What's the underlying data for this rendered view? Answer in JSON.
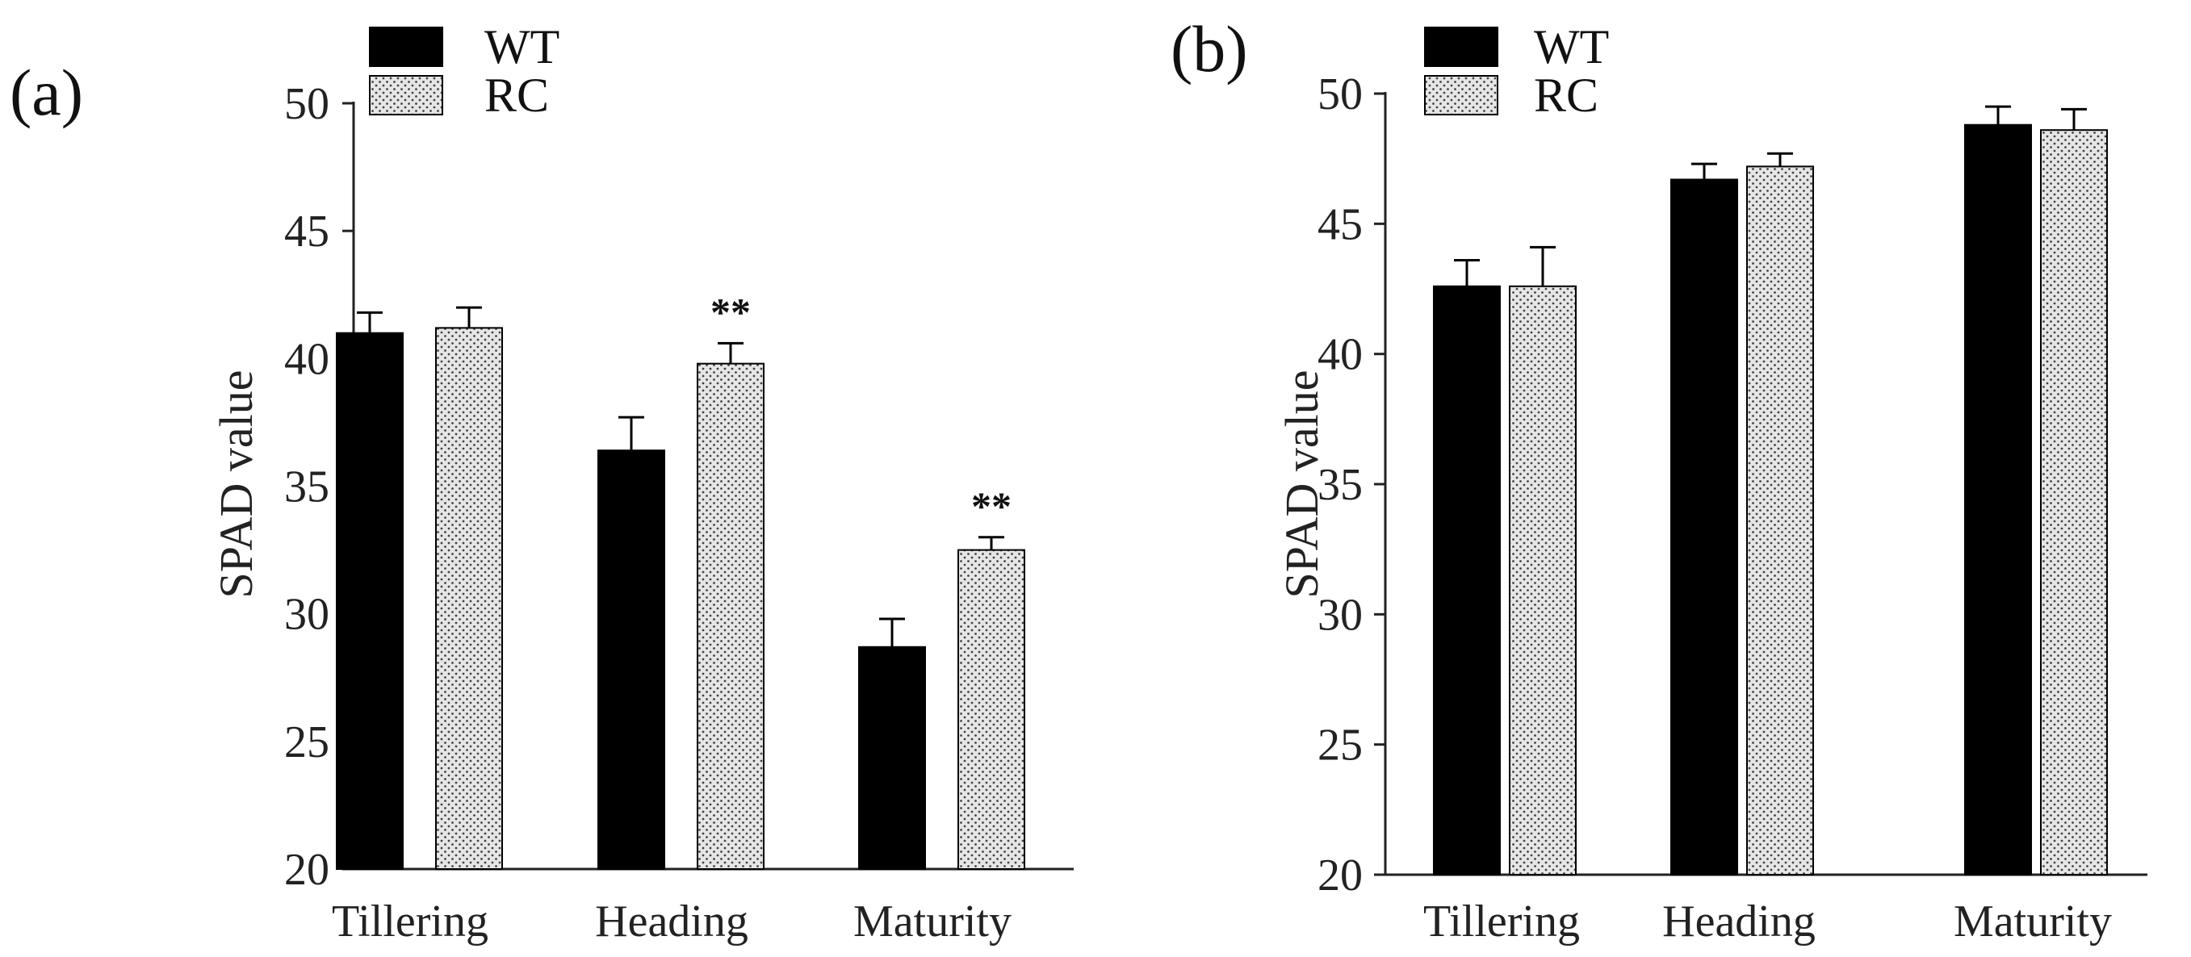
{
  "chart_data": [
    {
      "type": "bar",
      "panel": "(a)",
      "ylabel": "SPAD value",
      "xlabel": "",
      "ylim": [
        20,
        50
      ],
      "yticks": [
        20,
        25,
        30,
        35,
        40,
        45,
        50
      ],
      "ytick_labels": [
        "20",
        "25",
        "30",
        "35",
        "40",
        "45",
        "50"
      ],
      "categories": [
        "Tillering",
        "Heading",
        "Maturity"
      ],
      "legend": "top-left",
      "grid": false,
      "series": [
        {
          "name": "WT",
          "pattern": "solid",
          "values": [
            41.0,
            36.4,
            28.7
          ],
          "errors": [
            0.8,
            1.3,
            1.1
          ]
        },
        {
          "name": "RC",
          "pattern": "dotted",
          "values": [
            41.2,
            39.8,
            32.5
          ],
          "errors": [
            0.8,
            0.8,
            0.5
          ]
        }
      ],
      "annotations": [
        {
          "text": "**",
          "category": "Heading",
          "series": "RC"
        },
        {
          "text": "**",
          "category": "Maturity",
          "series": "RC"
        }
      ]
    },
    {
      "type": "bar",
      "panel": "(b)",
      "ylabel": "SPAD value",
      "xlabel": "",
      "ylim": [
        20,
        50
      ],
      "yticks": [
        20,
        25,
        30,
        35,
        40,
        45,
        50
      ],
      "ytick_labels": [
        "20",
        "25",
        "30",
        "35",
        "40",
        "45",
        "50"
      ],
      "categories": [
        "Tillering",
        "Heading",
        "Maturity"
      ],
      "legend": "top-left",
      "grid": false,
      "series": [
        {
          "name": "WT",
          "pattern": "solid",
          "values": [
            42.6,
            46.7,
            48.8
          ],
          "errors": [
            1.0,
            0.6,
            0.7
          ]
        },
        {
          "name": "RC",
          "pattern": "dotted",
          "values": [
            42.6,
            47.2,
            48.6
          ],
          "errors": [
            1.5,
            0.5,
            0.8
          ]
        }
      ],
      "annotations": []
    }
  ],
  "colors": {
    "wt": "#000000",
    "rc_fill": "#e6e6e6",
    "rc_dot": "#444444",
    "axis": "#222222"
  }
}
